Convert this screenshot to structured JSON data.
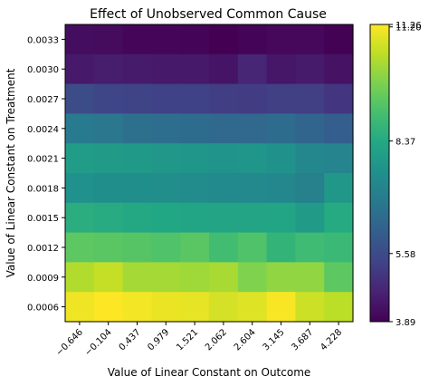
{
  "chart_data": {
    "type": "heatmap",
    "title": "Effect of Unobserved Common Cause",
    "xlabel": "Value of Linear Constant on Outcome",
    "ylabel": "Value of Linear Constant on Treatment",
    "x_ticks": [
      "−0.646",
      "−0.104",
      "0.437",
      "0.979",
      "1.521",
      "2.062",
      "2.604",
      "3.145",
      "3.687",
      "4.228"
    ],
    "y_ticks": [
      "0.0033",
      "0.0030",
      "0.0027",
      "0.0024",
      "0.0021",
      "0.0018",
      "0.0015",
      "0.0012",
      "0.0009",
      "0.0006"
    ],
    "colorbar": {
      "ticks": [
        "3.89",
        "5.58",
        "8.37",
        "11.20",
        "11.26"
      ],
      "range": [
        3.89,
        11.26
      ],
      "colormap": "viridis"
    },
    "values": [
      [
        4.15,
        4.1,
        4.0,
        4.0,
        3.95,
        3.89,
        3.95,
        4.05,
        4.05,
        3.92
      ],
      [
        4.4,
        4.5,
        4.45,
        4.4,
        4.4,
        4.3,
        4.7,
        4.35,
        4.45,
        4.25
      ],
      [
        5.6,
        5.45,
        5.4,
        5.35,
        5.35,
        5.25,
        5.2,
        5.3,
        5.3,
        5.05
      ],
      [
        6.9,
        6.8,
        6.6,
        6.55,
        6.5,
        6.4,
        6.4,
        6.5,
        6.3,
        6.1
      ],
      [
        8.0,
        7.9,
        7.85,
        7.8,
        7.75,
        7.7,
        7.75,
        7.65,
        7.3,
        7.2
      ],
      [
        7.6,
        7.55,
        7.55,
        7.5,
        7.45,
        7.4,
        7.35,
        7.3,
        7.1,
        7.8
      ],
      [
        8.5,
        8.45,
        8.35,
        8.3,
        8.25,
        8.2,
        8.2,
        8.25,
        7.9,
        8.4
      ],
      [
        9.4,
        9.35,
        9.3,
        9.2,
        9.35,
        9.0,
        9.2,
        8.7,
        8.95,
        8.85
      ],
      [
        10.4,
        10.6,
        10.25,
        10.25,
        10.2,
        10.3,
        9.85,
        10.05,
        10.05,
        9.4
      ],
      [
        11.1,
        11.26,
        11.15,
        11.05,
        11.0,
        10.8,
        10.9,
        11.2,
        10.7,
        10.5
      ]
    ]
  }
}
